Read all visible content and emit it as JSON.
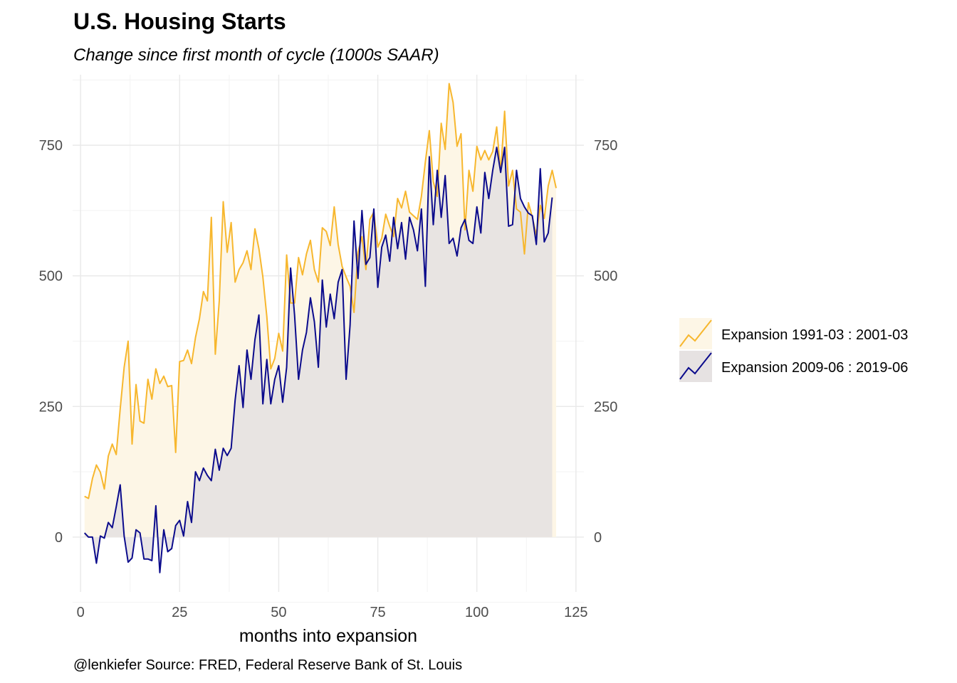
{
  "chart_data": {
    "type": "area",
    "title": "U.S. Housing Starts",
    "subtitle": "Change since first month of cycle (1000s SAAR)",
    "xlabel": "months into expansion",
    "ylabel": "",
    "caption": "@lenkiefer Source: FRED, Federal Reserve Bank of St. Louis",
    "xlim": [
      -2,
      127
    ],
    "ylim": [
      -105,
      885
    ],
    "x_ticks": [
      0,
      25,
      50,
      75,
      100,
      125
    ],
    "y_ticks": [
      0,
      250,
      500,
      750
    ],
    "secondary_y_axis": true,
    "grid": true,
    "legend_position": "right",
    "series": [
      {
        "name": "Expansion 1991-03 : 2001-03",
        "color": "#f7b72e",
        "fill": "#fdf6e6",
        "values": [
          [
            1,
            78
          ],
          [
            2,
            74
          ],
          [
            3,
            112
          ],
          [
            4,
            138
          ],
          [
            5,
            124
          ],
          [
            6,
            92
          ],
          [
            7,
            155
          ],
          [
            8,
            178
          ],
          [
            9,
            158
          ],
          [
            10,
            245
          ],
          [
            11,
            325
          ],
          [
            12,
            375
          ],
          [
            13,
            178
          ],
          [
            14,
            292
          ],
          [
            15,
            222
          ],
          [
            16,
            218
          ],
          [
            17,
            302
          ],
          [
            18,
            264
          ],
          [
            19,
            322
          ],
          [
            20,
            294
          ],
          [
            21,
            308
          ],
          [
            22,
            288
          ],
          [
            23,
            290
          ],
          [
            24,
            162
          ],
          [
            25,
            336
          ],
          [
            26,
            338
          ],
          [
            27,
            358
          ],
          [
            28,
            332
          ],
          [
            29,
            382
          ],
          [
            30,
            418
          ],
          [
            31,
            470
          ],
          [
            32,
            452
          ],
          [
            33,
            612
          ],
          [
            34,
            350
          ],
          [
            35,
            452
          ],
          [
            36,
            642
          ],
          [
            37,
            545
          ],
          [
            38,
            602
          ],
          [
            39,
            488
          ],
          [
            40,
            512
          ],
          [
            41,
            525
          ],
          [
            42,
            548
          ],
          [
            43,
            512
          ],
          [
            44,
            590
          ],
          [
            45,
            552
          ],
          [
            46,
            498
          ],
          [
            47,
            422
          ],
          [
            48,
            322
          ],
          [
            49,
            342
          ],
          [
            50,
            390
          ],
          [
            51,
            356
          ],
          [
            52,
            540
          ],
          [
            53,
            448
          ],
          [
            54,
            448
          ],
          [
            55,
            535
          ],
          [
            56,
            502
          ],
          [
            57,
            542
          ],
          [
            58,
            568
          ],
          [
            59,
            512
          ],
          [
            60,
            488
          ],
          [
            61,
            592
          ],
          [
            62,
            585
          ],
          [
            63,
            558
          ],
          [
            64,
            632
          ],
          [
            65,
            560
          ],
          [
            66,
            518
          ],
          [
            67,
            498
          ],
          [
            68,
            480
          ],
          [
            69,
            430
          ],
          [
            70,
            545
          ],
          [
            71,
            575
          ],
          [
            72,
            512
          ],
          [
            73,
            608
          ],
          [
            74,
            622
          ],
          [
            75,
            555
          ],
          [
            76,
            572
          ],
          [
            77,
            618
          ],
          [
            78,
            595
          ],
          [
            79,
            575
          ],
          [
            80,
            648
          ],
          [
            81,
            630
          ],
          [
            82,
            662
          ],
          [
            83,
            622
          ],
          [
            84,
            615
          ],
          [
            85,
            608
          ],
          [
            86,
            652
          ],
          [
            87,
            718
          ],
          [
            88,
            778
          ],
          [
            89,
            680
          ],
          [
            90,
            652
          ],
          [
            91,
            792
          ],
          [
            92,
            742
          ],
          [
            93,
            868
          ],
          [
            94,
            832
          ],
          [
            95,
            748
          ],
          [
            96,
            772
          ],
          [
            97,
            588
          ],
          [
            98,
            702
          ],
          [
            99,
            662
          ],
          [
            100,
            748
          ],
          [
            101,
            722
          ],
          [
            102,
            740
          ],
          [
            103,
            722
          ],
          [
            104,
            738
          ],
          [
            105,
            785
          ],
          [
            106,
            698
          ],
          [
            107,
            815
          ],
          [
            108,
            672
          ],
          [
            109,
            702
          ],
          [
            110,
            628
          ],
          [
            111,
            622
          ],
          [
            112,
            542
          ],
          [
            113,
            640
          ],
          [
            114,
            612
          ],
          [
            115,
            578
          ],
          [
            116,
            635
          ],
          [
            117,
            610
          ],
          [
            118,
            672
          ],
          [
            119,
            702
          ],
          [
            120,
            668
          ]
        ]
      },
      {
        "name": "Expansion 2009-06 : 2019-06",
        "color": "#0b0b8c",
        "fill": "#e6e2e2",
        "values": [
          [
            1,
            8
          ],
          [
            2,
            0
          ],
          [
            3,
            0
          ],
          [
            4,
            -50
          ],
          [
            5,
            2
          ],
          [
            6,
            -2
          ],
          [
            7,
            28
          ],
          [
            8,
            18
          ],
          [
            9,
            58
          ],
          [
            10,
            100
          ],
          [
            11,
            2
          ],
          [
            12,
            -48
          ],
          [
            13,
            -40
          ],
          [
            14,
            14
          ],
          [
            15,
            8
          ],
          [
            16,
            -42
          ],
          [
            17,
            -42
          ],
          [
            18,
            -45
          ],
          [
            19,
            60
          ],
          [
            20,
            -68
          ],
          [
            21,
            14
          ],
          [
            22,
            -28
          ],
          [
            23,
            -22
          ],
          [
            24,
            22
          ],
          [
            25,
            32
          ],
          [
            26,
            2
          ],
          [
            27,
            68
          ],
          [
            28,
            28
          ],
          [
            29,
            125
          ],
          [
            30,
            108
          ],
          [
            31,
            132
          ],
          [
            32,
            118
          ],
          [
            33,
            108
          ],
          [
            34,
            168
          ],
          [
            35,
            128
          ],
          [
            36,
            170
          ],
          [
            37,
            156
          ],
          [
            38,
            170
          ],
          [
            39,
            262
          ],
          [
            40,
            328
          ],
          [
            41,
            248
          ],
          [
            42,
            358
          ],
          [
            43,
            302
          ],
          [
            44,
            378
          ],
          [
            45,
            425
          ],
          [
            46,
            255
          ],
          [
            47,
            340
          ],
          [
            48,
            255
          ],
          [
            49,
            302
          ],
          [
            50,
            328
          ],
          [
            51,
            258
          ],
          [
            52,
            325
          ],
          [
            53,
            515
          ],
          [
            54,
            425
          ],
          [
            55,
            302
          ],
          [
            56,
            358
          ],
          [
            57,
            392
          ],
          [
            58,
            458
          ],
          [
            59,
            412
          ],
          [
            60,
            325
          ],
          [
            61,
            492
          ],
          [
            62,
            402
          ],
          [
            63,
            465
          ],
          [
            64,
            418
          ],
          [
            65,
            488
          ],
          [
            66,
            512
          ],
          [
            67,
            302
          ],
          [
            68,
            405
          ],
          [
            69,
            605
          ],
          [
            70,
            495
          ],
          [
            71,
            625
          ],
          [
            72,
            522
          ],
          [
            73,
            535
          ],
          [
            74,
            628
          ],
          [
            75,
            478
          ],
          [
            76,
            555
          ],
          [
            77,
            578
          ],
          [
            78,
            528
          ],
          [
            79,
            612
          ],
          [
            80,
            552
          ],
          [
            81,
            602
          ],
          [
            82,
            532
          ],
          [
            83,
            612
          ],
          [
            84,
            588
          ],
          [
            85,
            548
          ],
          [
            86,
            628
          ],
          [
            87,
            480
          ],
          [
            88,
            728
          ],
          [
            89,
            598
          ],
          [
            90,
            702
          ],
          [
            91,
            612
          ],
          [
            92,
            692
          ],
          [
            93,
            562
          ],
          [
            94,
            572
          ],
          [
            95,
            538
          ],
          [
            96,
            592
          ],
          [
            97,
            608
          ],
          [
            98,
            568
          ],
          [
            99,
            562
          ],
          [
            100,
            632
          ],
          [
            101,
            582
          ],
          [
            102,
            698
          ],
          [
            103,
            648
          ],
          [
            104,
            702
          ],
          [
            105,
            746
          ],
          [
            106,
            698
          ],
          [
            107,
            746
          ],
          [
            108,
            595
          ],
          [
            109,
            598
          ],
          [
            110,
            702
          ],
          [
            111,
            648
          ],
          [
            112,
            632
          ],
          [
            113,
            620
          ],
          [
            114,
            615
          ],
          [
            115,
            560
          ],
          [
            116,
            705
          ],
          [
            117,
            565
          ],
          [
            118,
            582
          ],
          [
            119,
            650
          ]
        ]
      }
    ]
  }
}
